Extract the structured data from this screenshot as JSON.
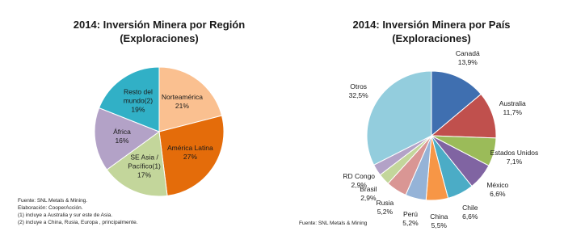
{
  "chart_data": [
    {
      "type": "pie",
      "title": "2014: Inversión Minera por Región",
      "subtitle": "(Exploraciones)",
      "categories": [
        "Norteamérica",
        "América Latina",
        "SE Asia / Pacífico(1)",
        "África",
        "Resto del mundo(2)"
      ],
      "values": [
        21,
        27,
        17,
        16,
        19
      ],
      "value_labels": [
        "21%",
        "27%",
        "17%",
        "16%",
        "19%"
      ],
      "colors": [
        "#FAC090",
        "#E46C0A",
        "#C3D69B",
        "#B3A2C7",
        "#31B0C6"
      ],
      "notes": [
        "Fuente: SNL Metals & Mining.",
        "Elaboración: CooperAcción.",
        "(1) incluye a Australia y sur este de Asia.",
        "(2) incluye a China, Rusia, Europa , principalmente."
      ]
    },
    {
      "type": "pie",
      "title": "2014: Inversión Minera por País",
      "subtitle": "(Exploraciones)",
      "categories": [
        "Canadá",
        "Australia",
        "Estados Unidos",
        "México",
        "Chile",
        "China",
        "Perú",
        "Rusia",
        "Brasil",
        "RD Congo",
        "Otros"
      ],
      "values": [
        13.9,
        11.7,
        7.1,
        6.6,
        6.6,
        5.5,
        5.2,
        5.2,
        2.9,
        2.9,
        32.5
      ],
      "value_labels": [
        "13,9%",
        "11,7%",
        "7,1%",
        "6,6%",
        "6,6%",
        "5,5%",
        "5,2%",
        "5,2%",
        "2,9%",
        "2,9%",
        "32,5%"
      ],
      "colors": [
        "#3F6FB0",
        "#C0504D",
        "#9BBB59",
        "#8064A2",
        "#4BACC6",
        "#F79646",
        "#95B3D7",
        "#D99694",
        "#C3D69B",
        "#B3A2C7",
        "#93CDDD"
      ],
      "notes": [
        "Fuente: SNL Metals & Mining"
      ]
    }
  ]
}
